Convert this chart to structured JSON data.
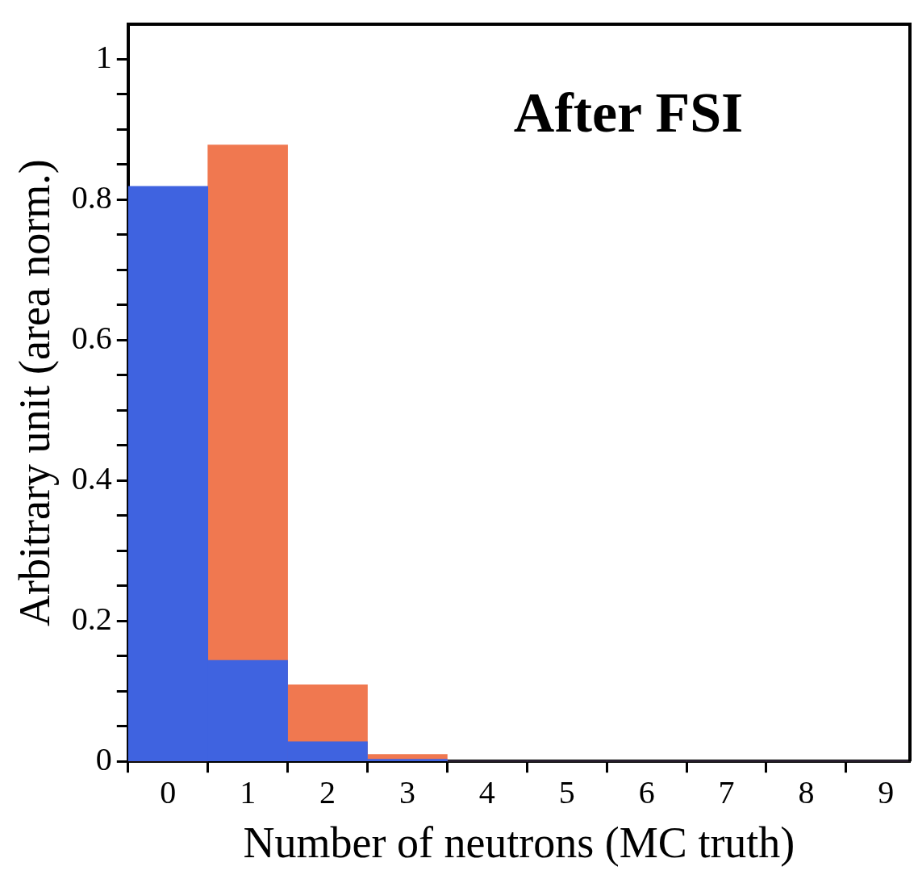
{
  "chart_data": {
    "type": "histogram",
    "xlabel": "Number of neutrons (MC truth)",
    "ylabel": "Arbitrary unit (area norm.)",
    "annotations": [
      "After FSI"
    ],
    "bins": [
      -0.5,
      0.5,
      1.5,
      2.5,
      3.5,
      4.5,
      5.5,
      6.5,
      7.5,
      8.5,
      9.5
    ],
    "series": [
      {
        "color": "#3f63e0",
        "values": [
          0.819,
          0.144,
          0.028,
          0.003,
          0,
          0,
          0,
          0,
          0,
          0
        ]
      },
      {
        "color": "#f07850",
        "values": [
          0,
          0.878,
          0.109,
          0.01,
          0,
          0,
          0,
          0,
          0,
          0
        ]
      }
    ],
    "xlim": [
      -0.5,
      9.3
    ],
    "xticks": [
      0,
      1,
      2,
      3,
      4,
      5,
      6,
      7,
      8,
      9
    ],
    "ylim": [
      0,
      1.05
    ],
    "yticks": [
      0,
      {
        "value": 0.05,
        "label": null
      },
      {
        "value": 0.1,
        "label": null
      },
      {
        "value": 0.15,
        "label": null
      },
      0.2,
      {
        "value": 0.25,
        "label": null
      },
      {
        "value": 0.3,
        "label": null
      },
      {
        "value": 0.35,
        "label": null
      },
      0.4,
      {
        "value": 0.45,
        "label": null
      },
      {
        "value": 0.5,
        "label": null
      },
      {
        "value": 0.55,
        "label": null
      },
      0.6,
      {
        "value": 0.65,
        "label": null
      },
      {
        "value": 0.7,
        "label": null
      },
      {
        "value": 0.75,
        "label": null
      },
      0.8,
      {
        "value": 0.85,
        "label": null
      },
      {
        "value": 0.9,
        "label": null
      },
      {
        "value": 0.95,
        "label": null
      },
      1
    ],
    "grid": false,
    "legend": false
  }
}
